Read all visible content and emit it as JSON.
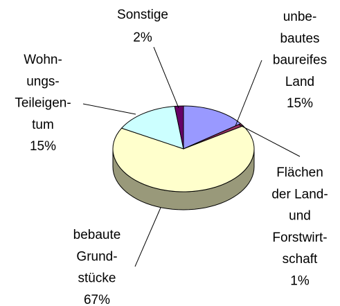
{
  "chart_data": {
    "type": "pie3d",
    "categories": [
      "unbe-\nbautes\nbaureifes\nLand",
      "Flächen\nder Land-\nund\nForstwirt-\nschaft",
      "bebaute\nGrund-\nstücke",
      "Wohn-\nungs-\nTeileigen-\ntum",
      "Sonstige"
    ],
    "values": [
      15,
      1,
      67,
      15,
      2
    ],
    "value_labels": [
      "15%",
      "1%",
      "67%",
      "15%",
      "2%"
    ],
    "colors": [
      "#9999ff",
      "#993366",
      "#ffffcc",
      "#ccffff",
      "#660066"
    ]
  }
}
